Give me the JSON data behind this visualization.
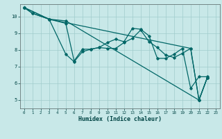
{
  "title": "",
  "xlabel": "Humidex (Indice chaleur)",
  "bg_color": "#c8e8e8",
  "grid_color": "#a0cccc",
  "line_color": "#006666",
  "xlim": [
    -0.5,
    23.5
  ],
  "ylim": [
    4.5,
    10.75
  ],
  "xticks": [
    0,
    1,
    2,
    3,
    4,
    5,
    6,
    7,
    8,
    9,
    10,
    11,
    12,
    13,
    14,
    15,
    16,
    17,
    18,
    19,
    20,
    21,
    22,
    23
  ],
  "yticks": [
    5,
    6,
    7,
    8,
    9,
    10
  ],
  "lines": [
    {
      "x": [
        0,
        1,
        3,
        5,
        6,
        7,
        8,
        9,
        10,
        11,
        12,
        13,
        14,
        15,
        16,
        17,
        18,
        19,
        20,
        21,
        22
      ],
      "y": [
        10.55,
        10.2,
        9.85,
        7.75,
        7.3,
        7.9,
        8.05,
        8.15,
        8.1,
        8.1,
        8.45,
        8.7,
        9.2,
        8.5,
        8.15,
        7.7,
        7.55,
        7.8,
        8.1,
        5.0,
        6.35
      ]
    },
    {
      "x": [
        0,
        1,
        3,
        5,
        21,
        22
      ],
      "y": [
        10.55,
        10.2,
        9.85,
        9.75,
        5.0,
        6.35
      ]
    },
    {
      "x": [
        0,
        3,
        5,
        6,
        7,
        8,
        9,
        10,
        11,
        12,
        13,
        14,
        15,
        16,
        17,
        18,
        19,
        20,
        21,
        22
      ],
      "y": [
        10.55,
        9.85,
        9.6,
        7.35,
        8.05,
        8.05,
        8.15,
        8.45,
        8.65,
        8.5,
        9.3,
        9.25,
        8.85,
        7.5,
        7.5,
        7.75,
        8.1,
        5.7,
        6.4,
        6.4
      ]
    },
    {
      "x": [
        0,
        3,
        20,
        21,
        22
      ],
      "y": [
        10.55,
        9.85,
        8.1,
        5.0,
        6.35
      ]
    }
  ]
}
